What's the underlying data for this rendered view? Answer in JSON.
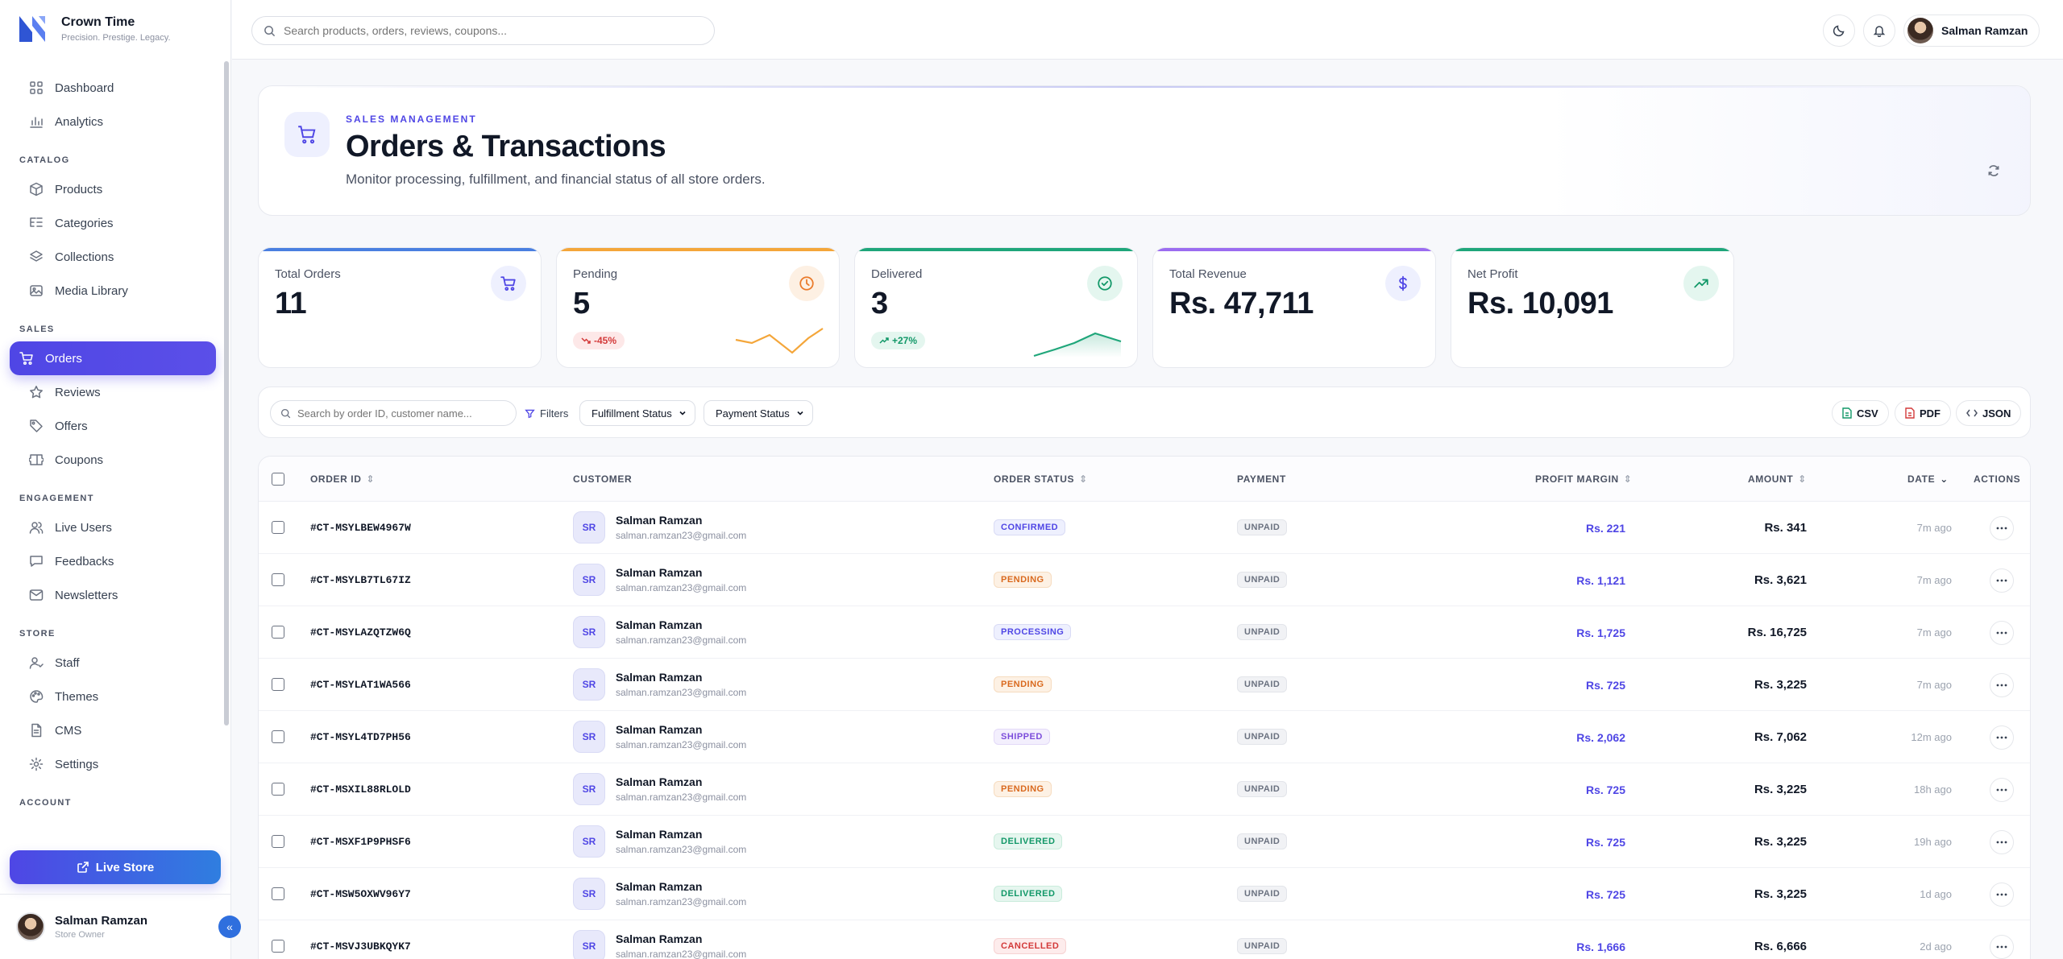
{
  "brand": {
    "name": "Crown Time",
    "tagline": "Precision. Prestige. Legacy."
  },
  "sidebar": {
    "top_items": [
      {
        "label": "Dashboard",
        "icon": "grid-icon"
      },
      {
        "label": "Analytics",
        "icon": "bar-chart-icon"
      }
    ],
    "sections": [
      {
        "title": "CATALOG",
        "items": [
          {
            "label": "Products",
            "icon": "box-icon"
          },
          {
            "label": "Categories",
            "icon": "list-tree-icon"
          },
          {
            "label": "Collections",
            "icon": "layers-icon"
          },
          {
            "label": "Media Library",
            "icon": "image-icon"
          }
        ]
      },
      {
        "title": "SALES",
        "items": [
          {
            "label": "Orders",
            "icon": "cart-icon",
            "active": true
          },
          {
            "label": "Reviews",
            "icon": "star-icon"
          },
          {
            "label": "Offers",
            "icon": "tag-icon"
          },
          {
            "label": "Coupons",
            "icon": "ticket-icon"
          }
        ]
      },
      {
        "title": "ENGAGEMENT",
        "items": [
          {
            "label": "Live Users",
            "icon": "users-icon"
          },
          {
            "label": "Feedbacks",
            "icon": "message-icon"
          },
          {
            "label": "Newsletters",
            "icon": "mail-icon"
          }
        ]
      },
      {
        "title": "STORE",
        "items": [
          {
            "label": "Staff",
            "icon": "staff-icon"
          },
          {
            "label": "Themes",
            "icon": "palette-icon"
          },
          {
            "label": "CMS",
            "icon": "file-icon"
          },
          {
            "label": "Settings",
            "icon": "gear-icon"
          }
        ]
      },
      {
        "title": "ACCOUNT",
        "items": []
      }
    ],
    "live_store_label": "Live Store",
    "user": {
      "name": "Salman Ramzan",
      "role": "Store Owner"
    }
  },
  "topbar": {
    "search_placeholder": "Search products, orders, reviews, coupons...",
    "user_name": "Salman Ramzan"
  },
  "header": {
    "kicker": "SALES MANAGEMENT",
    "title": "Orders & Transactions",
    "subtitle": "Monitor processing, fulfillment, and financial status of all store orders."
  },
  "stats": [
    {
      "label": "Total Orders",
      "value": "11",
      "color": "#4a7fe0",
      "icon": "cart-icon",
      "icon_bg": "#eef0fe",
      "icon_color": "#4f46e5"
    },
    {
      "label": "Pending",
      "value": "5",
      "color": "#f4a63a",
      "icon": "clock-icon",
      "icon_bg": "#fdf0e3",
      "icon_color": "#ea7a2a",
      "trend": "-45%",
      "trend_dir": "down"
    },
    {
      "label": "Delivered",
      "value": "3",
      "color": "#1fa67a",
      "icon": "check-circle-icon",
      "icon_bg": "#e4f6ef",
      "icon_color": "#129868",
      "trend": "+27%",
      "trend_dir": "up"
    },
    {
      "label": "Total Revenue",
      "value": "Rs. 47,711",
      "color": "#9b6cf0",
      "icon": "dollar-icon",
      "icon_bg": "#eef0fe",
      "icon_color": "#4f46e5"
    },
    {
      "label": "Net Profit",
      "value": "Rs. 10,091",
      "color": "#1fa67a",
      "icon": "trend-up-icon",
      "icon_bg": "#e4f6ef",
      "icon_color": "#129868"
    }
  ],
  "filters": {
    "search_placeholder": "Search by order ID, customer name...",
    "filters_label": "Filters",
    "fulfillment_label": "Fulfillment Status",
    "payment_label": "Payment Status",
    "exports": [
      "CSV",
      "PDF",
      "JSON"
    ]
  },
  "table": {
    "columns": {
      "order_id": "ORDER ID",
      "customer": "CUSTOMER",
      "order_status": "ORDER STATUS",
      "payment": "PAYMENT",
      "profit_margin": "PROFIT MARGIN",
      "amount": "AMOUNT",
      "date": "DATE",
      "actions": "ACTIONS"
    },
    "status_colors": {
      "CONFIRMED": {
        "bg": "#eef0fe",
        "fg": "#4f46e5",
        "border": "#d9dbf5"
      },
      "PENDING": {
        "bg": "#fdf1e4",
        "fg": "#d9691e",
        "border": "#f6dcc0"
      },
      "PROCESSING": {
        "bg": "#eef0fe",
        "fg": "#4f46e5",
        "border": "#d9dbf5"
      },
      "SHIPPED": {
        "bg": "#f3effd",
        "fg": "#7c4ddb",
        "border": "#e3d9f8"
      },
      "DELIVERED": {
        "bg": "#e6f6ef",
        "fg": "#129868",
        "border": "#c9ecdc"
      },
      "CANCELLED": {
        "bg": "#fdecec",
        "fg": "#d33a3a",
        "border": "#f6d2d2"
      }
    },
    "rows": [
      {
        "id": "#CT-MSYLBEW4967W",
        "initials": "SR",
        "name": "Salman Ramzan",
        "email": "salman.ramzan23@gmail.com",
        "status": "CONFIRMED",
        "payment": "UNPAID",
        "margin": "Rs. 221",
        "amount": "Rs. 341",
        "date": "7m ago"
      },
      {
        "id": "#CT-MSYLB7TL67IZ",
        "initials": "SR",
        "name": "Salman Ramzan",
        "email": "salman.ramzan23@gmail.com",
        "status": "PENDING",
        "payment": "UNPAID",
        "margin": "Rs. 1,121",
        "amount": "Rs. 3,621",
        "date": "7m ago"
      },
      {
        "id": "#CT-MSYLAZQTZW6Q",
        "initials": "SR",
        "name": "Salman Ramzan",
        "email": "salman.ramzan23@gmail.com",
        "status": "PROCESSING",
        "payment": "UNPAID",
        "margin": "Rs. 1,725",
        "amount": "Rs. 16,725",
        "date": "7m ago"
      },
      {
        "id": "#CT-MSYLAT1WA566",
        "initials": "SR",
        "name": "Salman Ramzan",
        "email": "salman.ramzan23@gmail.com",
        "status": "PENDING",
        "payment": "UNPAID",
        "margin": "Rs. 725",
        "amount": "Rs. 3,225",
        "date": "7m ago"
      },
      {
        "id": "#CT-MSYL4TD7PH56",
        "initials": "SR",
        "name": "Salman Ramzan",
        "email": "salman.ramzan23@gmail.com",
        "status": "SHIPPED",
        "payment": "UNPAID",
        "margin": "Rs. 2,062",
        "amount": "Rs. 7,062",
        "date": "12m ago"
      },
      {
        "id": "#CT-MSXIL88RLOLD",
        "initials": "SR",
        "name": "Salman Ramzan",
        "email": "salman.ramzan23@gmail.com",
        "status": "PENDING",
        "payment": "UNPAID",
        "margin": "Rs. 725",
        "amount": "Rs. 3,225",
        "date": "18h ago"
      },
      {
        "id": "#CT-MSXF1P9PHSF6",
        "initials": "SR",
        "name": "Salman Ramzan",
        "email": "salman.ramzan23@gmail.com",
        "status": "DELIVERED",
        "payment": "UNPAID",
        "margin": "Rs. 725",
        "amount": "Rs. 3,225",
        "date": "19h ago"
      },
      {
        "id": "#CT-MSW5OXWV96Y7",
        "initials": "SR",
        "name": "Salman Ramzan",
        "email": "salman.ramzan23@gmail.com",
        "status": "DELIVERED",
        "payment": "UNPAID",
        "margin": "Rs. 725",
        "amount": "Rs. 3,225",
        "date": "1d ago"
      },
      {
        "id": "#CT-MSVJ3UBKQYK7",
        "initials": "SR",
        "name": "Salman Ramzan",
        "email": "salman.ramzan23@gmail.com",
        "status": "CANCELLED",
        "payment": "UNPAID",
        "margin": "Rs. 1,666",
        "amount": "Rs. 6,666",
        "date": "2d ago"
      }
    ]
  }
}
